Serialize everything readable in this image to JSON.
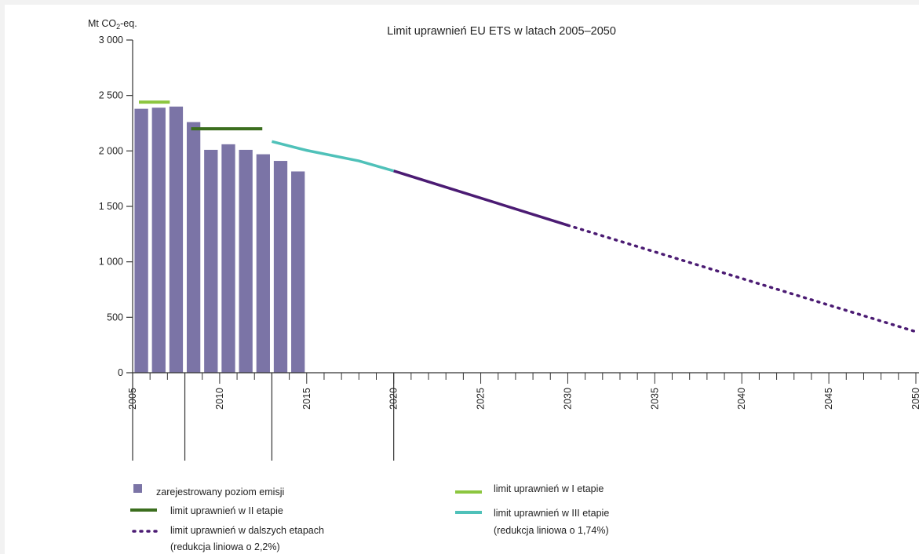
{
  "chart_data": {
    "type": "bar",
    "title": "Limit uprawnień EU ETS w latach 2005–2050",
    "ylabel_main": "Mt CO",
    "ylabel_sub": "2",
    "ylabel_tail": "-eq.",
    "ylim": [
      0,
      3000
    ],
    "xlim": [
      2005,
      2050
    ],
    "yticks": [
      0,
      500,
      1000,
      1500,
      2000,
      2500,
      3000
    ],
    "ytick_labels": [
      "0",
      "500",
      "1 000",
      "1 500",
      "2 000",
      "2 500",
      "3 000"
    ],
    "xtick_labels": [
      "2005",
      "2010",
      "2015",
      "2020",
      "2025",
      "2030",
      "2035",
      "2040",
      "2045",
      "2050"
    ],
    "grid": false,
    "colors": {
      "emissions": "#7b74a6",
      "phase1": "#8cc63f",
      "phase2": "#3b6e1e",
      "phase3": "#4fc1b9",
      "phase3_trend": "#4b1b73",
      "later": "#4b1b73"
    },
    "emissions": {
      "x": [
        2005,
        2006,
        2007,
        2008,
        2009,
        2010,
        2011,
        2012,
        2013,
        2014
      ],
      "values": [
        2380,
        2390,
        2400,
        2260,
        2010,
        2060,
        2010,
        1970,
        1910,
        1815
      ]
    },
    "phase1_cap": {
      "x": [
        2005,
        2007
      ],
      "value": 2440
    },
    "phase2_cap": {
      "x": [
        2008,
        2012
      ],
      "value": 2200
    },
    "phase3_cap": {
      "x": [
        2013,
        2015,
        2018,
        2020
      ],
      "y": [
        2085,
        2005,
        1910,
        1820
      ]
    },
    "phase3_trend": {
      "x": [
        2020,
        2030
      ],
      "y": [
        1820,
        1330
      ]
    },
    "later_phases": {
      "x": [
        2030,
        2050
      ],
      "y": [
        1330,
        370
      ]
    },
    "legend": {
      "emissions": "zarejestrowany poziom emisji",
      "phase2": "limit uprawnień w II etapie",
      "later_line1": "limit uprawnień w dalszych etapach",
      "later_line2": "(redukcja liniowa o 2,2%)",
      "phase1": "limit uprawnień w I etapie",
      "phase3_line1": "limit uprawnień w III etapie",
      "phase3_line2": "(redukcja liniowa o 1,74%)"
    },
    "legend_placement": "bottom"
  }
}
